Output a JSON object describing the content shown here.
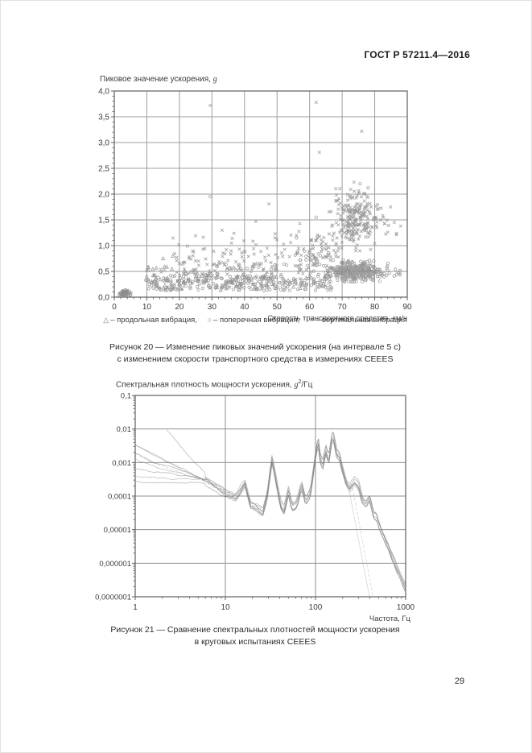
{
  "page": {
    "header": "ГОСТ Р 57211.4—2016",
    "page_number": "29"
  },
  "figure20": {
    "title_text": "Пиковое значение ускорения, ",
    "title_symbol": "g",
    "xlabel": "Скорость транспортного средства, км/ч",
    "legend": [
      {
        "symbol": "△",
        "label": "– продольная вибрация,"
      },
      {
        "symbol": "○",
        "label": "– поперечная вибрация,"
      },
      {
        "symbol": "×",
        "label": "– вертикальная вибрация"
      }
    ],
    "caption_line1": "Рисунок 20 — Изменение пиковых значений ускорения (на интервале 5 с)",
    "caption_line2": "с изменением скорости транспортного средства в измерениях CEEES"
  },
  "figure21": {
    "title_text": "Спектральная плотность мощности ускорения, ",
    "unit_symbol": "g",
    "unit_sup": "2",
    "unit_suffix": "/Гц",
    "xlabel": "Частота, Гц",
    "caption_line1": "Рисунок 21 — Сравнение спектральных плотностей мощности ускорения",
    "caption_line2": "в круговых испытаниях CEEES"
  },
  "chart_data": [
    {
      "type": "scatter",
      "title": "Пиковое значение ускорения, g",
      "xlabel": "Скорость транспортного средства, км/ч",
      "ylabel": "Пиковое значение ускорения, g",
      "xlim": [
        0,
        90
      ],
      "ylim": [
        0,
        4
      ],
      "grid": true,
      "xticks": [
        0,
        10,
        20,
        30,
        40,
        50,
        60,
        70,
        80,
        90
      ],
      "yticks": [
        0,
        0.5,
        1,
        1.5,
        2,
        2.5,
        3,
        3.5,
        4
      ],
      "ytick_labels": [
        "0,0",
        "0,5",
        "1,0",
        "1,5",
        "2,0",
        "2,5",
        "3,0",
        "3,5",
        "4,0"
      ],
      "marker_color": "#8c8c8c",
      "series": [
        {
          "name": "продольная вибрация",
          "marker": "triangle"
        },
        {
          "name": "поперечная вибрация",
          "marker": "circle"
        },
        {
          "name": "вертикальная вибрация",
          "marker": "cross"
        }
      ],
      "point_clusters": [
        {
          "series": "longitudinal",
          "dist": "gauss",
          "x": [
            3,
            0.8
          ],
          "xr": [
            1.5,
            5
          ],
          "y": [
            0.08,
            0.03
          ],
          "yr": [
            0.03,
            0.15
          ],
          "count": 14
        },
        {
          "series": "transverse",
          "dist": "gauss",
          "x": [
            3,
            0.9
          ],
          "xr": [
            1.5,
            5.5
          ],
          "y": [
            0.08,
            0.03
          ],
          "yr": [
            0.03,
            0.15
          ],
          "count": 26
        },
        {
          "series": "vertical",
          "dist": "gauss",
          "x": [
            3,
            0.9
          ],
          "xr": [
            1.5,
            5.5
          ],
          "y": [
            0.09,
            0.03
          ],
          "yr": [
            0.03,
            0.16
          ],
          "count": 16
        },
        {
          "series": "transverse",
          "dist": "uniform",
          "x": [
            9.5,
            67
          ],
          "y": [
            0.13,
            0.42
          ],
          "count": 240
        },
        {
          "series": "transverse",
          "dist": "uniform",
          "x": [
            30,
            67
          ],
          "y": [
            0.42,
            0.65
          ],
          "count": 30
        },
        {
          "series": "longitudinal",
          "dist": "uniform",
          "x": [
            10,
            38
          ],
          "y": [
            0.12,
            0.6
          ],
          "count": 55
        },
        {
          "series": "longitudinal",
          "dist": "uniform",
          "x": [
            38,
            62
          ],
          "y": [
            0.15,
            0.45
          ],
          "count": 18
        },
        {
          "series": "vertical",
          "dist": "uniform",
          "x": [
            12,
            67
          ],
          "y": [
            0.3,
            0.95
          ],
          "count": 150
        },
        {
          "series": "vertical",
          "dist": "uniform",
          "x": [
            14,
            60
          ],
          "y": [
            0.95,
            1.3
          ],
          "count": 18
        },
        {
          "series": "vertical",
          "dist": "uniform",
          "x": [
            12,
            67
          ],
          "y": [
            0.15,
            0.3
          ],
          "count": 40
        },
        {
          "series": "vertical",
          "dist": "gauss",
          "x": [
            74,
            3.2
          ],
          "xr": [
            66,
            84
          ],
          "y": [
            1.5,
            0.27
          ],
          "yr": [
            0.9,
            2.25
          ],
          "count": 240
        },
        {
          "series": "vertical",
          "dist": "uniform",
          "x": [
            60,
            70
          ],
          "y": [
            0.75,
            1.25
          ],
          "count": 35
        },
        {
          "series": "transverse",
          "dist": "gauss",
          "x": [
            74,
            3.8
          ],
          "xr": [
            64,
            86
          ],
          "y": [
            0.5,
            0.1
          ],
          "yr": [
            0.3,
            0.78
          ],
          "count": 330
        },
        {
          "series": "transverse",
          "dist": "uniform",
          "x": [
            55,
            66
          ],
          "y": [
            0.55,
            0.9
          ],
          "count": 25
        },
        {
          "series": "longitudinal",
          "dist": "uniform",
          "x": [
            63,
            80
          ],
          "y": [
            0.35,
            0.7
          ],
          "count": 12
        },
        {
          "series": "vertical",
          "dist": "uniform",
          "x": [
            80,
            88
          ],
          "y": [
            1.2,
            1.8
          ],
          "count": 14
        },
        {
          "series": "transverse",
          "dist": "uniform",
          "x": [
            82,
            88
          ],
          "y": [
            0.4,
            0.65
          ],
          "count": 14
        }
      ],
      "outlier_points": {
        "vertical": [
          [
            29.5,
            3.72
          ],
          [
            62,
            3.78
          ],
          [
            76,
            3.22
          ],
          [
            63,
            2.81
          ],
          [
            47.5,
            1.81
          ],
          [
            43.5,
            1.47
          ],
          [
            57,
            1.43
          ],
          [
            36,
            1.05
          ],
          [
            50,
            1.12
          ],
          [
            86,
            1.45
          ],
          [
            88,
            1.38
          ]
        ],
        "transverse": [
          [
            29.5,
            1.95
          ],
          [
            62,
            1.55
          ],
          [
            75.5,
            2.2
          ],
          [
            78,
            2.12
          ],
          [
            56,
            1.15
          ],
          [
            65,
            0.95
          ]
        ],
        "longitudinal": [
          [
            15,
            0.75
          ],
          [
            18,
            0.8
          ],
          [
            21,
            0.65
          ]
        ]
      }
    },
    {
      "type": "line",
      "title": "Спектральная плотность мощности ускорения, g²/Гц",
      "xlabel": "Частота, Гц",
      "xscale": "log",
      "yscale": "log",
      "xlim": [
        1,
        1000
      ],
      "ylim": [
        1e-07,
        0.1
      ],
      "grid": true,
      "xtick_labels": [
        "1",
        "10",
        "100",
        "1000"
      ],
      "ytick_labels": [
        "0,1",
        "0,01",
        "0,001",
        "0,0001",
        "0,00001",
        "0,000001",
        "0,0000001"
      ],
      "n_series": 7,
      "line_colors": [
        "#6e6e6e",
        "#7a7a7a",
        "#858585",
        "#8f8f8f",
        "#787878",
        "#989898",
        "#828282"
      ],
      "series_start_values_at_1hz": [
        0.0035,
        0.0018,
        0.0008,
        0.0004,
        0.0003,
        0.0012,
        0.0006
      ],
      "blend_end_hz": 6,
      "special_series": {
        "index": 2,
        "anchors": [
          [
            2.2,
            0.01
          ],
          [
            3.2,
            0.003
          ],
          [
            4.5,
            0.001
          ],
          [
            6,
            0.00045
          ]
        ]
      },
      "jitter_decades": 0.15,
      "base_curve": [
        [
          1,
          0.0015
        ],
        [
          1.5,
          0.0011
        ],
        [
          2,
          0.0009
        ],
        [
          3,
          0.0006
        ],
        [
          4,
          0.00045
        ],
        [
          5,
          0.00035
        ],
        [
          6,
          0.00028
        ],
        [
          8,
          0.00018
        ],
        [
          10,
          0.00012
        ],
        [
          13,
          0.0001
        ],
        [
          16.5,
          0.00025
        ],
        [
          19,
          6e-05
        ],
        [
          22,
          5e-05
        ],
        [
          26,
          3.5e-05
        ],
        [
          29,
          0.0001
        ],
        [
          33,
          0.0013
        ],
        [
          37,
          0.00025
        ],
        [
          41,
          6e-05
        ],
        [
          45,
          4e-05
        ],
        [
          50,
          0.00015
        ],
        [
          55,
          5e-05
        ],
        [
          62,
          6e-05
        ],
        [
          70,
          0.00022
        ],
        [
          78,
          7e-05
        ],
        [
          88,
          0.00012
        ],
        [
          100,
          0.0015
        ],
        [
          107,
          0.0045
        ],
        [
          112,
          0.0015
        ],
        [
          120,
          0.0008
        ],
        [
          130,
          0.0025
        ],
        [
          140,
          0.0012
        ],
        [
          155,
          0.0075
        ],
        [
          163,
          0.004
        ],
        [
          170,
          0.002
        ],
        [
          185,
          0.0015
        ],
        [
          200,
          0.0006
        ],
        [
          220,
          0.00025
        ],
        [
          240,
          0.00018
        ],
        [
          270,
          0.0003
        ],
        [
          300,
          0.00022
        ],
        [
          330,
          8e-05
        ],
        [
          360,
          6e-05
        ],
        [
          400,
          9e-05
        ],
        [
          440,
          3e-05
        ],
        [
          480,
          2.5e-05
        ],
        [
          520,
          1.2e-05
        ],
        [
          580,
          6e-06
        ],
        [
          650,
          3e-06
        ],
        [
          720,
          1.5e-06
        ],
        [
          800,
          7e-07
        ],
        [
          880,
          4e-07
        ],
        [
          950,
          2.5e-07
        ],
        [
          1000,
          1.8e-07
        ]
      ],
      "steep_dropoffs": [
        {
          "from_hz": 240,
          "to": [
            430,
            1e-07
          ],
          "dashed": false
        },
        {
          "from_hz": 260,
          "to": [
            470,
            1e-07
          ],
          "dashed": true
        }
      ]
    }
  ]
}
